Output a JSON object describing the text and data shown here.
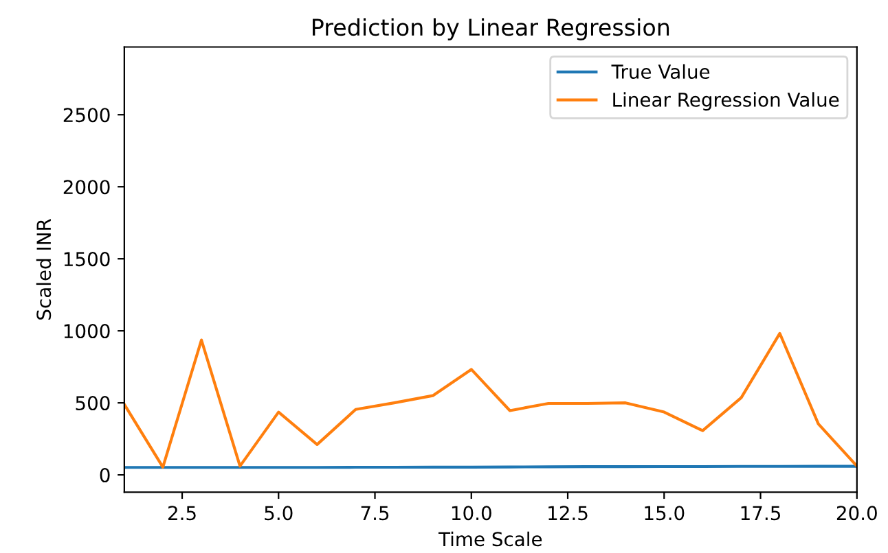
{
  "chart_data": {
    "type": "line",
    "title": "Prediction by Linear Regression",
    "xlabel": "Time Scale",
    "ylabel": "Scaled INR",
    "x": [
      1,
      2,
      3,
      4,
      5,
      6,
      7,
      8,
      9,
      10,
      11,
      12,
      13,
      14,
      15,
      16,
      17,
      18,
      19,
      20
    ],
    "series": [
      {
        "name": "True Value",
        "color": "#1f77b4",
        "values": [
          52,
          52,
          52,
          52,
          52,
          52,
          53,
          53,
          54,
          54,
          55,
          56,
          57,
          57,
          58,
          58,
          59,
          59,
          60,
          60
        ]
      },
      {
        "name": "Linear Regression Value",
        "color": "#ff7f0e",
        "values": [
          489,
          54,
          936,
          61,
          436,
          211,
          454,
          500,
          550,
          732,
          446,
          496,
          496,
          500,
          436,
          307,
          536,
          982,
          354,
          61
        ]
      }
    ],
    "xlim": [
      1,
      20
    ],
    "xticks": [
      {
        "value": 2.5,
        "label": "2.5"
      },
      {
        "value": 5,
        "label": "5.0"
      },
      {
        "value": 7.5,
        "label": "7.5"
      },
      {
        "value": 10,
        "label": "10.0"
      },
      {
        "value": 12.5,
        "label": "12.5"
      },
      {
        "value": 15,
        "label": "15.0"
      },
      {
        "value": 17.5,
        "label": "17.5"
      },
      {
        "value": 20,
        "label": "20.0"
      }
    ],
    "ylim": [
      -120,
      2970
    ],
    "yticks": [
      0,
      500,
      1000,
      1500,
      2000,
      2500
    ],
    "legend": "top right",
    "grid": false
  }
}
